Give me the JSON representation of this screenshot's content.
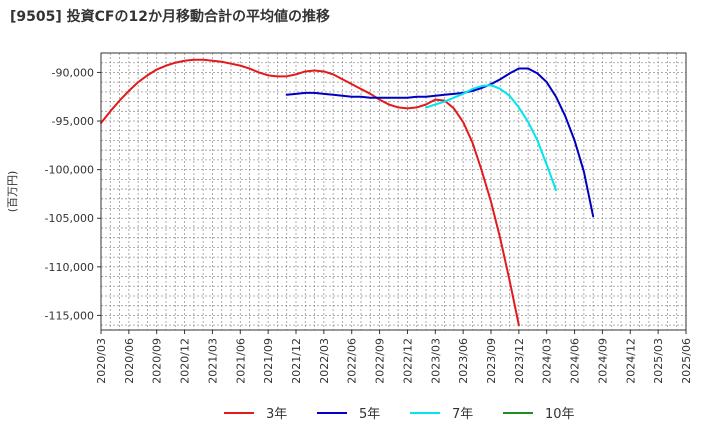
{
  "chart_data": {
    "type": "line",
    "title": "[9505]  投資CFの12か月移動合計の平均値の推移",
    "ylabel": "(百万円)",
    "xlabel": "",
    "ylim": [
      -116500,
      -88000
    ],
    "y_ticks": [
      -90000,
      -95000,
      -100000,
      -105000,
      -110000,
      -115000
    ],
    "y_tick_labels": [
      "-90,000",
      "-95,000",
      "-100,000",
      "-105,000",
      "-110,000",
      "-115,000"
    ],
    "x_tick_labels": [
      "2020/03",
      "2020/06",
      "2020/09",
      "2020/12",
      "2021/03",
      "2021/06",
      "2021/09",
      "2021/12",
      "2022/03",
      "2022/06",
      "2022/09",
      "2022/12",
      "2023/03",
      "2023/06",
      "2023/09",
      "2023/12",
      "2024/03",
      "2024/06",
      "2024/09",
      "2024/12",
      "2025/03",
      "2025/06"
    ],
    "grid": true,
    "legend_position": "bottom",
    "series": [
      {
        "name": "3年",
        "color": "#e31a1c",
        "start_index": 0,
        "values": [
          -95200,
          -94000,
          -92900,
          -91900,
          -91000,
          -90300,
          -89700,
          -89300,
          -89000,
          -88800,
          -88700,
          -88700,
          -88800,
          -88900,
          -89100,
          -89300,
          -89600,
          -90000,
          -90300,
          -90400,
          -90400,
          -90200,
          -89900,
          -89800,
          -89900,
          -90200,
          -90700,
          -91200,
          -91700,
          -92200,
          -92800,
          -93300,
          -93600,
          -93700,
          -93600,
          -93300,
          -92800,
          -92900,
          -93700,
          -95100,
          -97200,
          -100100,
          -103300,
          -107100,
          -111400,
          -116000
        ]
      },
      {
        "name": "5年",
        "color": "#0000c0",
        "start_index": 20,
        "values": [
          -92300,
          -92200,
          -92100,
          -92100,
          -92200,
          -92300,
          -92400,
          -92500,
          -92500,
          -92600,
          -92600,
          -92600,
          -92600,
          -92600,
          -92500,
          -92500,
          -92400,
          -92300,
          -92200,
          -92100,
          -91900,
          -91600,
          -91200,
          -90700,
          -90100,
          -89600,
          -89600,
          -90100,
          -91000,
          -92500,
          -94500,
          -97000,
          -100200,
          -104800
        ]
      },
      {
        "name": "7年",
        "color": "#00e5ee",
        "start_index": 35,
        "values": [
          -93600,
          -93300,
          -93000,
          -92600,
          -92200,
          -91700,
          -91400,
          -91300,
          -91700,
          -92400,
          -93600,
          -95100,
          -97000,
          -99500,
          -102100
        ]
      },
      {
        "name": "10年",
        "color": "#228b22",
        "start_index": 0,
        "values": []
      }
    ]
  }
}
